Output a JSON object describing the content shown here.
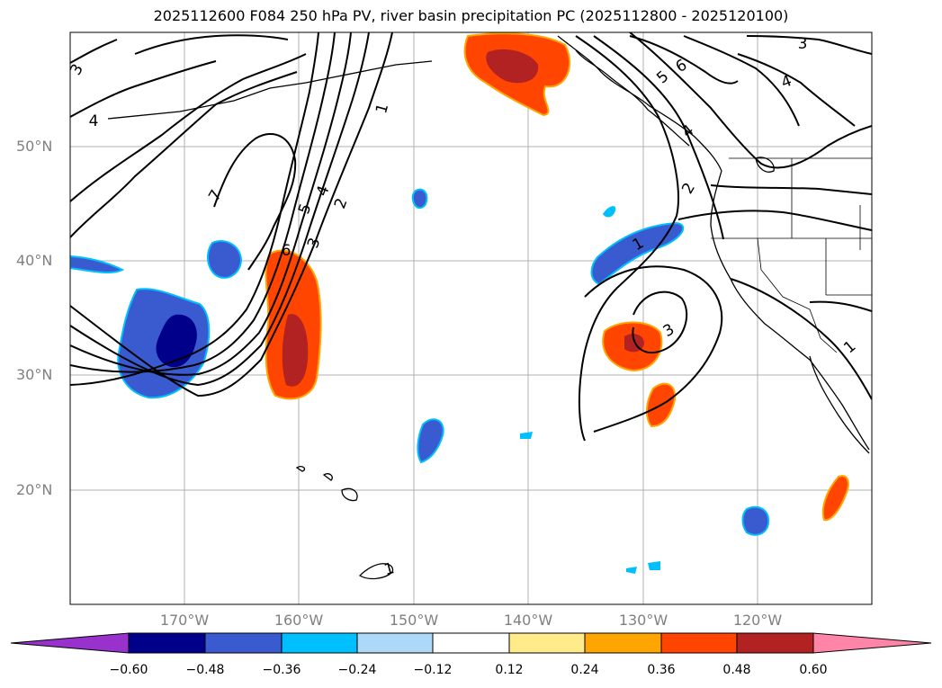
{
  "title": "2025112600 F084 250 hPa PV, river basin precipitation PC (2025112800 - 2025120100)",
  "latitude_labels": [
    "50°N",
    "40°N",
    "30°N",
    "20°N"
  ],
  "longitude_labels": [
    "170°W",
    "160°W",
    "150°W",
    "140°W",
    "130°W",
    "120°W"
  ],
  "contour_labels": [
    "3",
    "4",
    "7",
    "6",
    "5",
    "4",
    "3",
    "2",
    "1",
    "1",
    "3",
    "2",
    "4",
    "5",
    "6",
    "3",
    "4",
    "1",
    "1"
  ],
  "colorbar": {
    "ticks": [
      "−0.60",
      "−0.48",
      "−0.36",
      "−0.24",
      "−0.12",
      "0.12",
      "0.24",
      "0.36",
      "0.48",
      "0.60"
    ],
    "colors": [
      "#9932cc",
      "#00008b",
      "#3a5bcf",
      "#00bfff",
      "#add8f7",
      "#ffffff",
      "#ffeb8a",
      "#ffa500",
      "#ff4500",
      "#b22222",
      "#ff85a8"
    ]
  }
}
